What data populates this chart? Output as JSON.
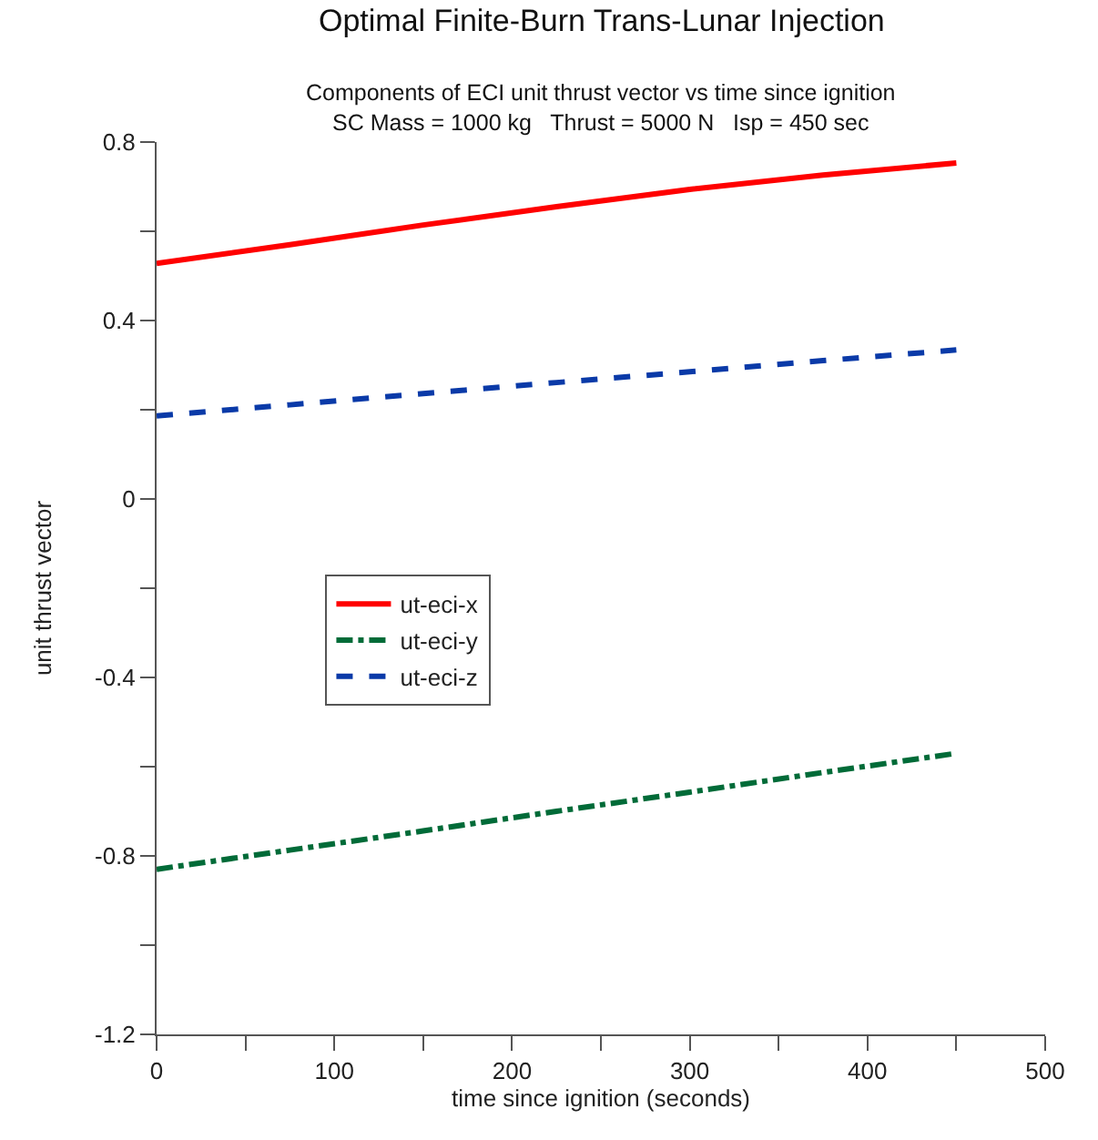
{
  "chart_data": {
    "type": "line",
    "title": "Optimal Finite-Burn Trans-Lunar Injection",
    "subtitle": "Components of ECI unit thrust vector vs time since ignition\nSC Mass = 1000 kg   Thrust = 5000 N   Isp = 450 sec",
    "xlabel": "time since ignition (seconds)",
    "ylabel": "unit thrust vector",
    "x": [
      0,
      75,
      150,
      225,
      300,
      375,
      450
    ],
    "series": [
      {
        "name": "ut-eci-x",
        "color": "#ff0000",
        "line_style": "solid",
        "values": [
          0.528,
          0.57,
          0.614,
          0.655,
          0.694,
          0.726,
          0.753
        ]
      },
      {
        "name": "ut-eci-y",
        "color": "#006b38",
        "line_style": "dashdot",
        "values": [
          -0.83,
          -0.787,
          -0.744,
          -0.7,
          -0.657,
          -0.613,
          -0.57
        ]
      },
      {
        "name": "ut-eci-z",
        "color": "#0a3aa8",
        "line_style": "dashed",
        "values": [
          0.186,
          0.211,
          0.236,
          0.261,
          0.285,
          0.31,
          0.334
        ]
      }
    ],
    "xlim": [
      0,
      500
    ],
    "xticks": [
      0,
      {
        "value": 50,
        "label": null
      },
      100,
      {
        "value": 150,
        "label": null
      },
      200,
      {
        "value": 250,
        "label": null
      },
      300,
      {
        "value": 350,
        "label": null
      },
      400,
      {
        "value": 450,
        "label": null
      },
      500
    ],
    "ylim": [
      -1.2,
      0.8
    ],
    "yticks": [
      -1.2,
      {
        "value": -1.0,
        "label": null
      },
      -0.8,
      {
        "value": -0.6,
        "label": null
      },
      -0.4,
      {
        "value": -0.2,
        "label": null
      },
      0,
      {
        "value": 0.2,
        "label": null
      },
      0.4,
      {
        "value": 0.6,
        "label": null
      },
      0.8
    ],
    "legend": "center left",
    "marker": "none"
  }
}
